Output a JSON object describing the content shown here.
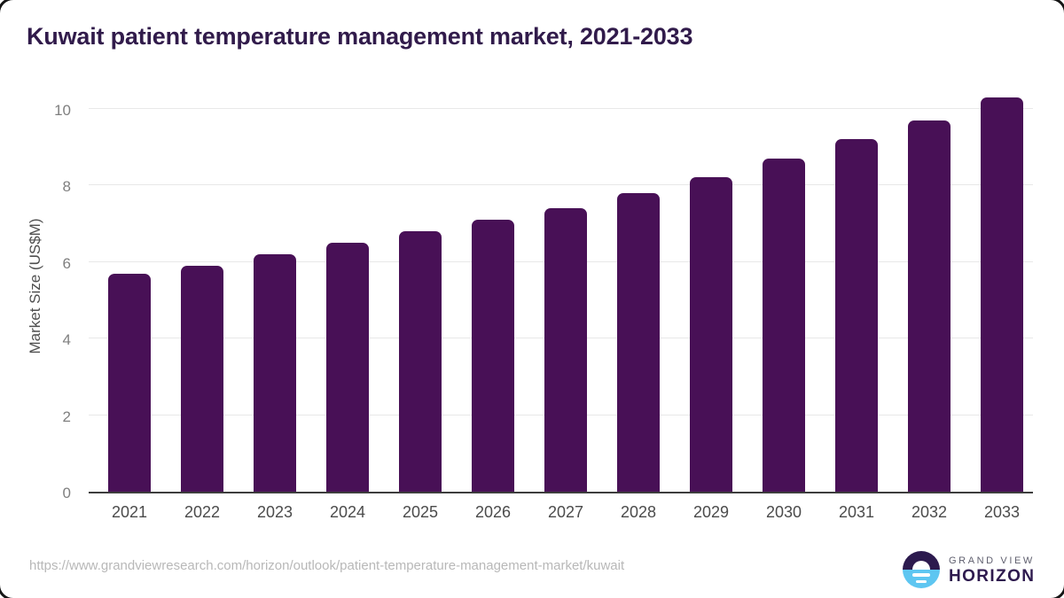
{
  "title": "Kuwait patient temperature management market, 2021-2033",
  "footer": {
    "source_url": "https://www.grandviewresearch.com/horizon/outlook/patient-temperature-management-market/kuwait",
    "logo": {
      "line1": "GRAND VIEW",
      "line2": "HORIZON"
    }
  },
  "colors": {
    "bar": "#481056",
    "title_text": "#311b4b",
    "gridline": "#e8e8e8",
    "axis_line": "#3d3d3d",
    "y_tick_label": "#7f7f7f",
    "x_tick_label": "#4b4b4b",
    "url_text": "#b8b8b8",
    "logo_purple": "#2c1a4e",
    "logo_blue": "#5ec6f1",
    "logo_gray": "#5f5f6e"
  },
  "chart_data": {
    "type": "bar",
    "title": "Kuwait patient temperature management market, 2021-2033",
    "categories": [
      "2021",
      "2022",
      "2023",
      "2024",
      "2025",
      "2026",
      "2027",
      "2028",
      "2029",
      "2030",
      "2031",
      "2032",
      "2033"
    ],
    "values": [
      5.7,
      5.9,
      6.2,
      6.5,
      6.8,
      7.1,
      7.4,
      7.8,
      8.2,
      8.7,
      9.2,
      9.7,
      10.3
    ],
    "xlabel": "",
    "ylabel": "Market Size (US$M)",
    "ylim": [
      0,
      10.8
    ],
    "yticks": [
      0,
      2,
      4,
      6,
      8,
      10
    ],
    "grid": true,
    "legend_position": "none",
    "bar_color": "#481056"
  }
}
